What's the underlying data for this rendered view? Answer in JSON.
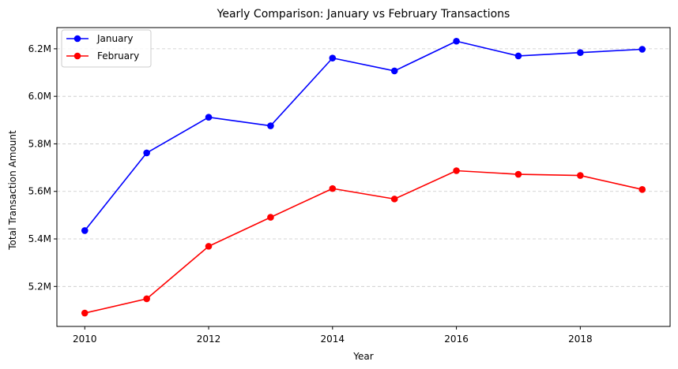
{
  "chart_data": {
    "type": "line",
    "title": "Yearly Comparison: January vs February Transactions",
    "xlabel": "Year",
    "ylabel": "Total Transaction Amount",
    "x": [
      2010,
      2011,
      2012,
      2013,
      2014,
      2015,
      2016,
      2017,
      2018,
      2019
    ],
    "series": [
      {
        "name": "January",
        "color": "#0000ff",
        "marker": "circle",
        "values": [
          5435000,
          5762000,
          5912000,
          5876000,
          6161000,
          6107000,
          6232000,
          6170000,
          6184000,
          6198000
        ]
      },
      {
        "name": "February",
        "color": "#ff0000",
        "marker": "circle",
        "values": [
          5088000,
          5148000,
          5369000,
          5491000,
          5612000,
          5568000,
          5687000,
          5672000,
          5667000,
          5608000
        ]
      }
    ],
    "xticks": [
      2010,
      2012,
      2014,
      2016,
      2018
    ],
    "xtick_labels": [
      "2010",
      "2012",
      "2014",
      "2016",
      "2018"
    ],
    "yticks": [
      5200000,
      5400000,
      5600000,
      5800000,
      6000000,
      6200000
    ],
    "ytick_labels": [
      "5.2M",
      "5.4M",
      "5.6M",
      "5.8M",
      "6.0M",
      "6.2M"
    ],
    "xlim": [
      2009.55,
      2019.45
    ],
    "ylim": [
      5031800,
      6289200
    ],
    "grid": "y-dashed",
    "legend_position": "top-left"
  }
}
